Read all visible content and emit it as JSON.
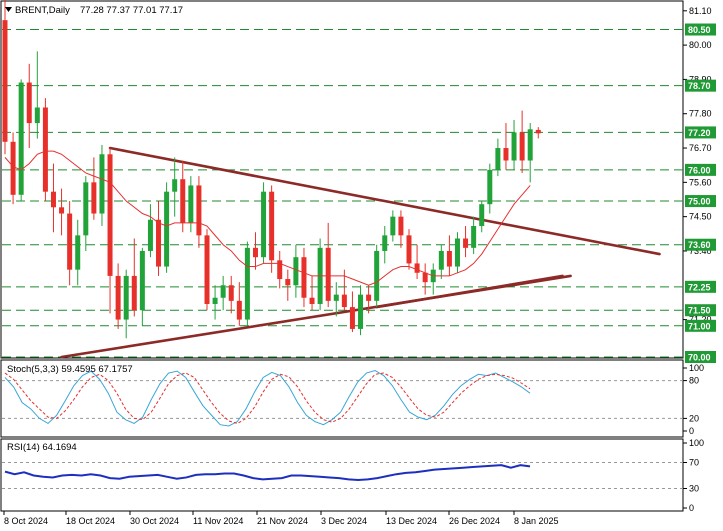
{
  "header": {
    "symbol_icon": "triangle-down-icon",
    "title": "BRENT,Daily",
    "ohlc": "77.28 77.37 77.01 77.17"
  },
  "price_panel": {
    "y_ticks": [
      "81.10",
      "80.00",
      "78.90",
      "77.80",
      "76.70",
      "75.60",
      "74.50",
      "73.40",
      "71.20"
    ],
    "levels": [
      {
        "value": 80.5,
        "label": "80.50"
      },
      {
        "value": 78.7,
        "label": "78.70"
      },
      {
        "value": 77.2,
        "label": "77.20"
      },
      {
        "value": 76.0,
        "label": "76.00"
      },
      {
        "value": 75.0,
        "label": "75.00"
      },
      {
        "value": 73.6,
        "label": "73.60"
      },
      {
        "value": 72.25,
        "label": "72.25"
      },
      {
        "value": 71.5,
        "label": "71.50"
      },
      {
        "value": 71.0,
        "label": "71.00"
      },
      {
        "value": 70.0,
        "label": "70.00"
      }
    ],
    "current_price_label": "77.20"
  },
  "stoch_panel": {
    "title": "Stoch(5,3,3) 59.4595 67.1757",
    "y_ticks": [
      "100",
      "80",
      "20",
      "0"
    ]
  },
  "rsi_panel": {
    "title": "RSI(14) 64.1694",
    "y_ticks": [
      "100",
      "70",
      "30",
      "0"
    ]
  },
  "x_axis": {
    "labels": [
      "8 Oct 2024",
      "18 Oct 2024",
      "30 Oct 2024",
      "11 Nov 2024",
      "21 Nov 2024",
      "3 Dec 2024",
      "13 Dec 2024",
      "26 Dec 2024",
      "8 Jan 2025"
    ]
  },
  "colors": {
    "bull": "#22a33a",
    "bear": "#e8302a",
    "level": "#1f8a2e",
    "trend": "#8b2a26",
    "ma": "#e53030",
    "stoch_main": "#3aa6d6",
    "stoch_signal": "#e53030",
    "rsi": "#1d2fbf",
    "level_bg": "#1f9a34"
  },
  "chart_data": [
    {
      "type": "candlestick",
      "title": "BRENT,Daily",
      "ylim": [
        70.0,
        81.35
      ],
      "candles": [
        {
          "o": 80.8,
          "h": 81.5,
          "l": 76.5,
          "c": 76.9
        },
        {
          "o": 76.9,
          "h": 77.2,
          "l": 74.9,
          "c": 75.2
        },
        {
          "o": 75.2,
          "h": 78.9,
          "l": 75.0,
          "c": 78.8
        },
        {
          "o": 78.8,
          "h": 79.4,
          "l": 76.7,
          "c": 77.5
        },
        {
          "o": 77.5,
          "h": 79.8,
          "l": 77.0,
          "c": 78.0
        },
        {
          "o": 78.0,
          "h": 78.3,
          "l": 75.0,
          "c": 75.3
        },
        {
          "o": 75.3,
          "h": 76.2,
          "l": 74.0,
          "c": 74.8
        },
        {
          "o": 74.8,
          "h": 75.4,
          "l": 73.9,
          "c": 74.6
        },
        {
          "o": 74.6,
          "h": 75.0,
          "l": 72.3,
          "c": 72.8
        },
        {
          "o": 72.8,
          "h": 74.4,
          "l": 72.3,
          "c": 73.9
        },
        {
          "o": 73.9,
          "h": 75.8,
          "l": 73.4,
          "c": 75.6
        },
        {
          "o": 75.6,
          "h": 76.4,
          "l": 74.4,
          "c": 74.6
        },
        {
          "o": 74.6,
          "h": 76.8,
          "l": 74.2,
          "c": 76.5
        },
        {
          "o": 76.5,
          "h": 76.7,
          "l": 71.4,
          "c": 72.6
        },
        {
          "o": 72.6,
          "h": 73.0,
          "l": 70.9,
          "c": 71.2
        },
        {
          "o": 71.2,
          "h": 72.8,
          "l": 70.6,
          "c": 72.6
        },
        {
          "o": 72.6,
          "h": 73.8,
          "l": 71.3,
          "c": 71.5
        },
        {
          "o": 71.5,
          "h": 73.5,
          "l": 71.0,
          "c": 73.4
        },
        {
          "o": 73.4,
          "h": 74.9,
          "l": 73.2,
          "c": 74.4
        },
        {
          "o": 74.4,
          "h": 75.0,
          "l": 72.6,
          "c": 72.9
        },
        {
          "o": 72.9,
          "h": 75.6,
          "l": 72.7,
          "c": 75.3
        },
        {
          "o": 75.3,
          "h": 76.4,
          "l": 74.5,
          "c": 75.7
        },
        {
          "o": 75.7,
          "h": 76.3,
          "l": 74.0,
          "c": 74.3
        },
        {
          "o": 74.3,
          "h": 75.8,
          "l": 74.0,
          "c": 75.5
        },
        {
          "o": 75.5,
          "h": 75.8,
          "l": 73.5,
          "c": 73.9
        },
        {
          "o": 73.9,
          "h": 74.1,
          "l": 71.5,
          "c": 71.7
        },
        {
          "o": 71.7,
          "h": 72.3,
          "l": 71.2,
          "c": 71.9
        },
        {
          "o": 71.9,
          "h": 72.6,
          "l": 71.5,
          "c": 72.3
        },
        {
          "o": 72.3,
          "h": 72.6,
          "l": 71.4,
          "c": 71.8
        },
        {
          "o": 71.8,
          "h": 72.4,
          "l": 71.0,
          "c": 71.2
        },
        {
          "o": 71.2,
          "h": 73.7,
          "l": 71.0,
          "c": 73.5
        },
        {
          "o": 73.5,
          "h": 74.0,
          "l": 72.8,
          "c": 73.2
        },
        {
          "o": 73.2,
          "h": 75.6,
          "l": 73.0,
          "c": 75.3
        },
        {
          "o": 75.3,
          "h": 75.5,
          "l": 72.7,
          "c": 73.1
        },
        {
          "o": 73.1,
          "h": 73.4,
          "l": 72.2,
          "c": 72.5
        },
        {
          "o": 72.5,
          "h": 72.8,
          "l": 71.8,
          "c": 72.3
        },
        {
          "o": 72.3,
          "h": 73.6,
          "l": 71.9,
          "c": 73.2
        },
        {
          "o": 73.2,
          "h": 73.5,
          "l": 71.6,
          "c": 71.9
        },
        {
          "o": 71.9,
          "h": 72.6,
          "l": 71.5,
          "c": 71.7
        },
        {
          "o": 71.7,
          "h": 73.8,
          "l": 71.5,
          "c": 73.5
        },
        {
          "o": 73.5,
          "h": 74.3,
          "l": 71.6,
          "c": 71.8
        },
        {
          "o": 71.8,
          "h": 72.4,
          "l": 71.3,
          "c": 72.0
        },
        {
          "o": 72.0,
          "h": 72.8,
          "l": 71.5,
          "c": 71.6
        },
        {
          "o": 71.6,
          "h": 72.1,
          "l": 70.8,
          "c": 70.9
        },
        {
          "o": 70.9,
          "h": 72.3,
          "l": 70.7,
          "c": 72.0
        },
        {
          "o": 72.0,
          "h": 72.3,
          "l": 71.4,
          "c": 71.8
        },
        {
          "o": 71.8,
          "h": 73.6,
          "l": 71.6,
          "c": 73.4
        },
        {
          "o": 73.4,
          "h": 74.2,
          "l": 73.0,
          "c": 73.9
        },
        {
          "o": 73.9,
          "h": 74.7,
          "l": 73.7,
          "c": 74.5
        },
        {
          "o": 74.5,
          "h": 74.7,
          "l": 73.5,
          "c": 73.9
        },
        {
          "o": 73.9,
          "h": 74.1,
          "l": 72.8,
          "c": 73.0
        },
        {
          "o": 73.0,
          "h": 73.6,
          "l": 72.5,
          "c": 72.7
        },
        {
          "o": 72.7,
          "h": 73.0,
          "l": 72.0,
          "c": 72.4
        },
        {
          "o": 72.4,
          "h": 73.0,
          "l": 72.0,
          "c": 72.8
        },
        {
          "o": 72.8,
          "h": 73.6,
          "l": 72.5,
          "c": 73.4
        },
        {
          "o": 73.4,
          "h": 73.9,
          "l": 72.6,
          "c": 72.9
        },
        {
          "o": 72.9,
          "h": 74.0,
          "l": 72.7,
          "c": 73.8
        },
        {
          "o": 73.8,
          "h": 74.2,
          "l": 73.2,
          "c": 73.5
        },
        {
          "o": 73.5,
          "h": 74.5,
          "l": 73.3,
          "c": 74.2
        },
        {
          "o": 74.2,
          "h": 75.0,
          "l": 74.0,
          "c": 74.9
        },
        {
          "o": 74.9,
          "h": 76.2,
          "l": 74.6,
          "c": 76.0
        },
        {
          "o": 76.0,
          "h": 77.0,
          "l": 75.8,
          "c": 76.7
        },
        {
          "o": 76.7,
          "h": 77.5,
          "l": 76.0,
          "c": 76.3
        },
        {
          "o": 76.3,
          "h": 77.6,
          "l": 76.0,
          "c": 77.2
        },
        {
          "o": 77.2,
          "h": 77.9,
          "l": 75.9,
          "c": 76.3
        },
        {
          "o": 76.3,
          "h": 77.5,
          "l": 75.6,
          "c": 77.3
        },
        {
          "o": 77.28,
          "h": 77.37,
          "l": 77.01,
          "c": 77.17
        }
      ],
      "moving_average": [
        76.4,
        76.1,
        76.0,
        76.2,
        76.5,
        76.6,
        76.6,
        76.5,
        76.3,
        76.1,
        75.9,
        75.8,
        75.7,
        75.6,
        75.3,
        75.0,
        74.8,
        74.6,
        74.5,
        74.3,
        74.2,
        74.3,
        74.3,
        74.3,
        74.3,
        74.2,
        73.9,
        73.6,
        73.4,
        73.1,
        72.9,
        72.9,
        73.0,
        73.0,
        73.0,
        72.9,
        72.8,
        72.7,
        72.6,
        72.6,
        72.6,
        72.6,
        72.6,
        72.5,
        72.4,
        72.3,
        72.4,
        72.6,
        72.8,
        72.9,
        72.9,
        72.8,
        72.7,
        72.6,
        72.6,
        72.6,
        72.7,
        72.8,
        73.0,
        73.3,
        73.7,
        74.1,
        74.5,
        74.9,
        75.2,
        75.5
      ],
      "trendlines": [
        {
          "from": [
            13,
            76.7
          ],
          "to": [
            81,
            73.3
          ]
        },
        {
          "from": [
            7,
            70.0
          ],
          "to": [
            70,
            72.6
          ]
        },
        {
          "from": [
            46,
            71.6
          ],
          "to": [
            69,
            72.6
          ]
        }
      ]
    },
    {
      "type": "line",
      "title": "Stoch(5,3,3) 59.4595 67.1757",
      "ylim": [
        0,
        100
      ],
      "series": [
        {
          "name": "main",
          "values": [
            85,
            70,
            45,
            35,
            20,
            12,
            25,
            48,
            72,
            88,
            95,
            82,
            60,
            30,
            18,
            12,
            22,
            50,
            75,
            92,
            95,
            85,
            62,
            40,
            25,
            10,
            8,
            15,
            35,
            62,
            85,
            93,
            88,
            70,
            45,
            25,
            15,
            10,
            18,
            30,
            55,
            78,
            92,
            96,
            88,
            72,
            50,
            30,
            22,
            18,
            25,
            40,
            58,
            72,
            82,
            90,
            88,
            92,
            85,
            78,
            70,
            60
          ]
        },
        {
          "name": "signal",
          "values": [
            92,
            82,
            65,
            48,
            35,
            22,
            20,
            32,
            50,
            70,
            85,
            90,
            80,
            60,
            35,
            20,
            18,
            30,
            52,
            75,
            88,
            92,
            85,
            65,
            45,
            28,
            16,
            12,
            20,
            38,
            62,
            82,
            90,
            86,
            70,
            48,
            30,
            18,
            14,
            20,
            35,
            55,
            75,
            90,
            92,
            85,
            70,
            52,
            35,
            25,
            22,
            30,
            45,
            60,
            72,
            82,
            88,
            90,
            88,
            84,
            76,
            67
          ]
        }
      ]
    },
    {
      "type": "line",
      "title": "RSI(14) 64.1694",
      "ylim": [
        0,
        100
      ],
      "series": [
        {
          "name": "RSI(14)",
          "values": [
            56,
            52,
            55,
            50,
            48,
            47,
            50,
            51,
            50,
            52,
            50,
            46,
            45,
            48,
            49,
            50,
            51,
            48,
            45,
            47,
            51,
            52,
            52,
            53,
            53,
            50,
            46,
            44,
            45,
            46,
            50,
            50,
            49,
            48,
            47,
            46,
            44,
            43,
            44,
            46,
            49,
            52,
            54,
            55,
            57,
            59,
            60,
            61,
            62,
            63,
            64,
            65,
            66,
            62,
            66,
            64
          ]
        }
      ]
    }
  ]
}
